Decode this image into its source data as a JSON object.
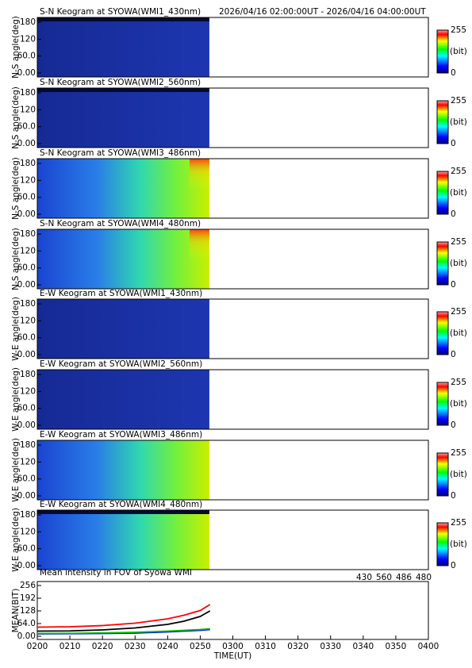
{
  "time_range": "2026/04/16 02:00:00UT - 2026/04/16 04:00:00UT",
  "chart_data": [
    {
      "type": "heatmap",
      "title": "S-N Keogram at SYOWA(WMI1_430nm)",
      "y_label": "N-S angle(deg)",
      "ylim": [
        -14,
        197
      ],
      "yticks": [
        {
          "value": 0,
          "label": "0.00"
        },
        {
          "value": 60,
          "label": "60.0"
        },
        120,
        180
      ],
      "colorbar_label": "(bit)",
      "clim": [
        0,
        255
      ],
      "cticks": [
        0,
        255
      ]
    },
    {
      "type": "heatmap",
      "title": "S-N Keogram at SYOWA(WMI2_560nm)",
      "y_label": "N-S angle(deg)",
      "ylim": [
        -14,
        197
      ],
      "yticks": [
        {
          "value": 0,
          "label": "0.00"
        },
        {
          "value": 60,
          "label": "60.0"
        },
        120,
        180
      ],
      "colorbar_label": "(bit)",
      "clim": [
        0,
        255
      ],
      "cticks": [
        0,
        255
      ]
    },
    {
      "type": "heatmap",
      "title": "S-N Keogram at SYOWA(WMI3_486nm)",
      "y_label": "N-S angle(deg)",
      "ylim": [
        -14,
        197
      ],
      "yticks": [
        {
          "value": 0,
          "label": "0.00"
        },
        {
          "value": 60,
          "label": "60.0"
        },
        120,
        180
      ],
      "colorbar_label": "(bit)",
      "clim": [
        0,
        255
      ],
      "cticks": [
        0,
        255
      ]
    },
    {
      "type": "heatmap",
      "title": "S-N Keogram at SYOWA(WMI4_480nm)",
      "y_label": "N-S angle(deg)",
      "ylim": [
        -14,
        197
      ],
      "yticks": [
        {
          "value": 0,
          "label": "0.00"
        },
        {
          "value": 60,
          "label": "60.0"
        },
        120,
        180
      ],
      "colorbar_label": "(bit)",
      "clim": [
        0,
        255
      ],
      "cticks": [
        0,
        255
      ]
    },
    {
      "type": "heatmap",
      "title": "E-W Keogram at SYOWA(WMI1_430nm)",
      "y_label": "W-E angle(deg)",
      "ylim": [
        -14,
        197
      ],
      "yticks": [
        {
          "value": 0,
          "label": "0.00"
        },
        {
          "value": 60,
          "label": "60.0"
        },
        120,
        180
      ],
      "colorbar_label": "(bit)",
      "clim": [
        0,
        255
      ],
      "cticks": [
        0,
        255
      ]
    },
    {
      "type": "heatmap",
      "title": "E-W Keogram at SYOWA(WMI2_560nm)",
      "y_label": "W-E angle(deg)",
      "ylim": [
        -14,
        197
      ],
      "yticks": [
        {
          "value": 0,
          "label": "0.00"
        },
        {
          "value": 60,
          "label": "60.0"
        },
        120,
        180
      ],
      "colorbar_label": "(bit)",
      "clim": [
        0,
        255
      ],
      "cticks": [
        0,
        255
      ]
    },
    {
      "type": "heatmap",
      "title": "E-W Keogram at SYOWA(WMI3_486nm)",
      "y_label": "W-E angle(deg)",
      "ylim": [
        -14,
        197
      ],
      "yticks": [
        {
          "value": 0,
          "label": "0.00"
        },
        {
          "value": 60,
          "label": "60.0"
        },
        120,
        180
      ],
      "colorbar_label": "(bit)",
      "clim": [
        0,
        255
      ],
      "cticks": [
        0,
        255
      ]
    },
    {
      "type": "heatmap",
      "title": "E-W Keogram at SYOWA(WMI4_480nm)",
      "y_label": "W-E angle(deg)",
      "ylim": [
        -14,
        197
      ],
      "yticks": [
        {
          "value": 0,
          "label": "0.00"
        },
        {
          "value": 60,
          "label": "60.0"
        },
        120,
        180
      ],
      "colorbar_label": "(bit)",
      "clim": [
        0,
        255
      ],
      "cticks": [
        0,
        255
      ]
    },
    {
      "type": "line",
      "title": "Mean intensity in FOV of Syowa WMI",
      "y_label": "MEAN(BIT)",
      "x_label": "TIME(UT)",
      "x": [
        120,
        130,
        140,
        150,
        160,
        165,
        170,
        173
      ],
      "xlim": [
        120,
        240
      ],
      "xticks": [
        {
          "value": 120,
          "label": "0200"
        },
        {
          "value": 130,
          "label": "0210"
        },
        {
          "value": 140,
          "label": "0220"
        },
        {
          "value": 150,
          "label": "0230"
        },
        {
          "value": 160,
          "label": "0240"
        },
        {
          "value": 170,
          "label": "0250"
        },
        {
          "value": 180,
          "label": "0300"
        },
        {
          "value": 190,
          "label": "0310"
        },
        {
          "value": 200,
          "label": "0320"
        },
        {
          "value": 210,
          "label": "0330"
        },
        {
          "value": 220,
          "label": "0340"
        },
        {
          "value": 230,
          "label": "0350"
        },
        {
          "value": 240,
          "label": "0400"
        }
      ],
      "ylim": [
        -16,
        276
      ],
      "yticks": [
        {
          "value": 0,
          "label": "0.00"
        },
        {
          "value": 64,
          "label": "64.0"
        },
        128,
        192,
        256
      ],
      "series": [
        {
          "name": "430",
          "color": "#0000ff",
          "values": [
            12,
            13,
            14,
            16,
            22,
            26,
            30,
            34
          ]
        },
        {
          "name": "560",
          "color": "#00c000",
          "values": [
            14,
            15,
            17,
            20,
            26,
            30,
            34,
            38
          ]
        },
        {
          "name": "486",
          "color": "#ff0000",
          "values": [
            46,
            48,
            54,
            66,
            88,
            106,
            130,
            160
          ]
        },
        {
          "name": "480",
          "color": "#000000",
          "values": [
            26,
            27,
            32,
            42,
            60,
            76,
            100,
            128
          ]
        }
      ]
    }
  ]
}
